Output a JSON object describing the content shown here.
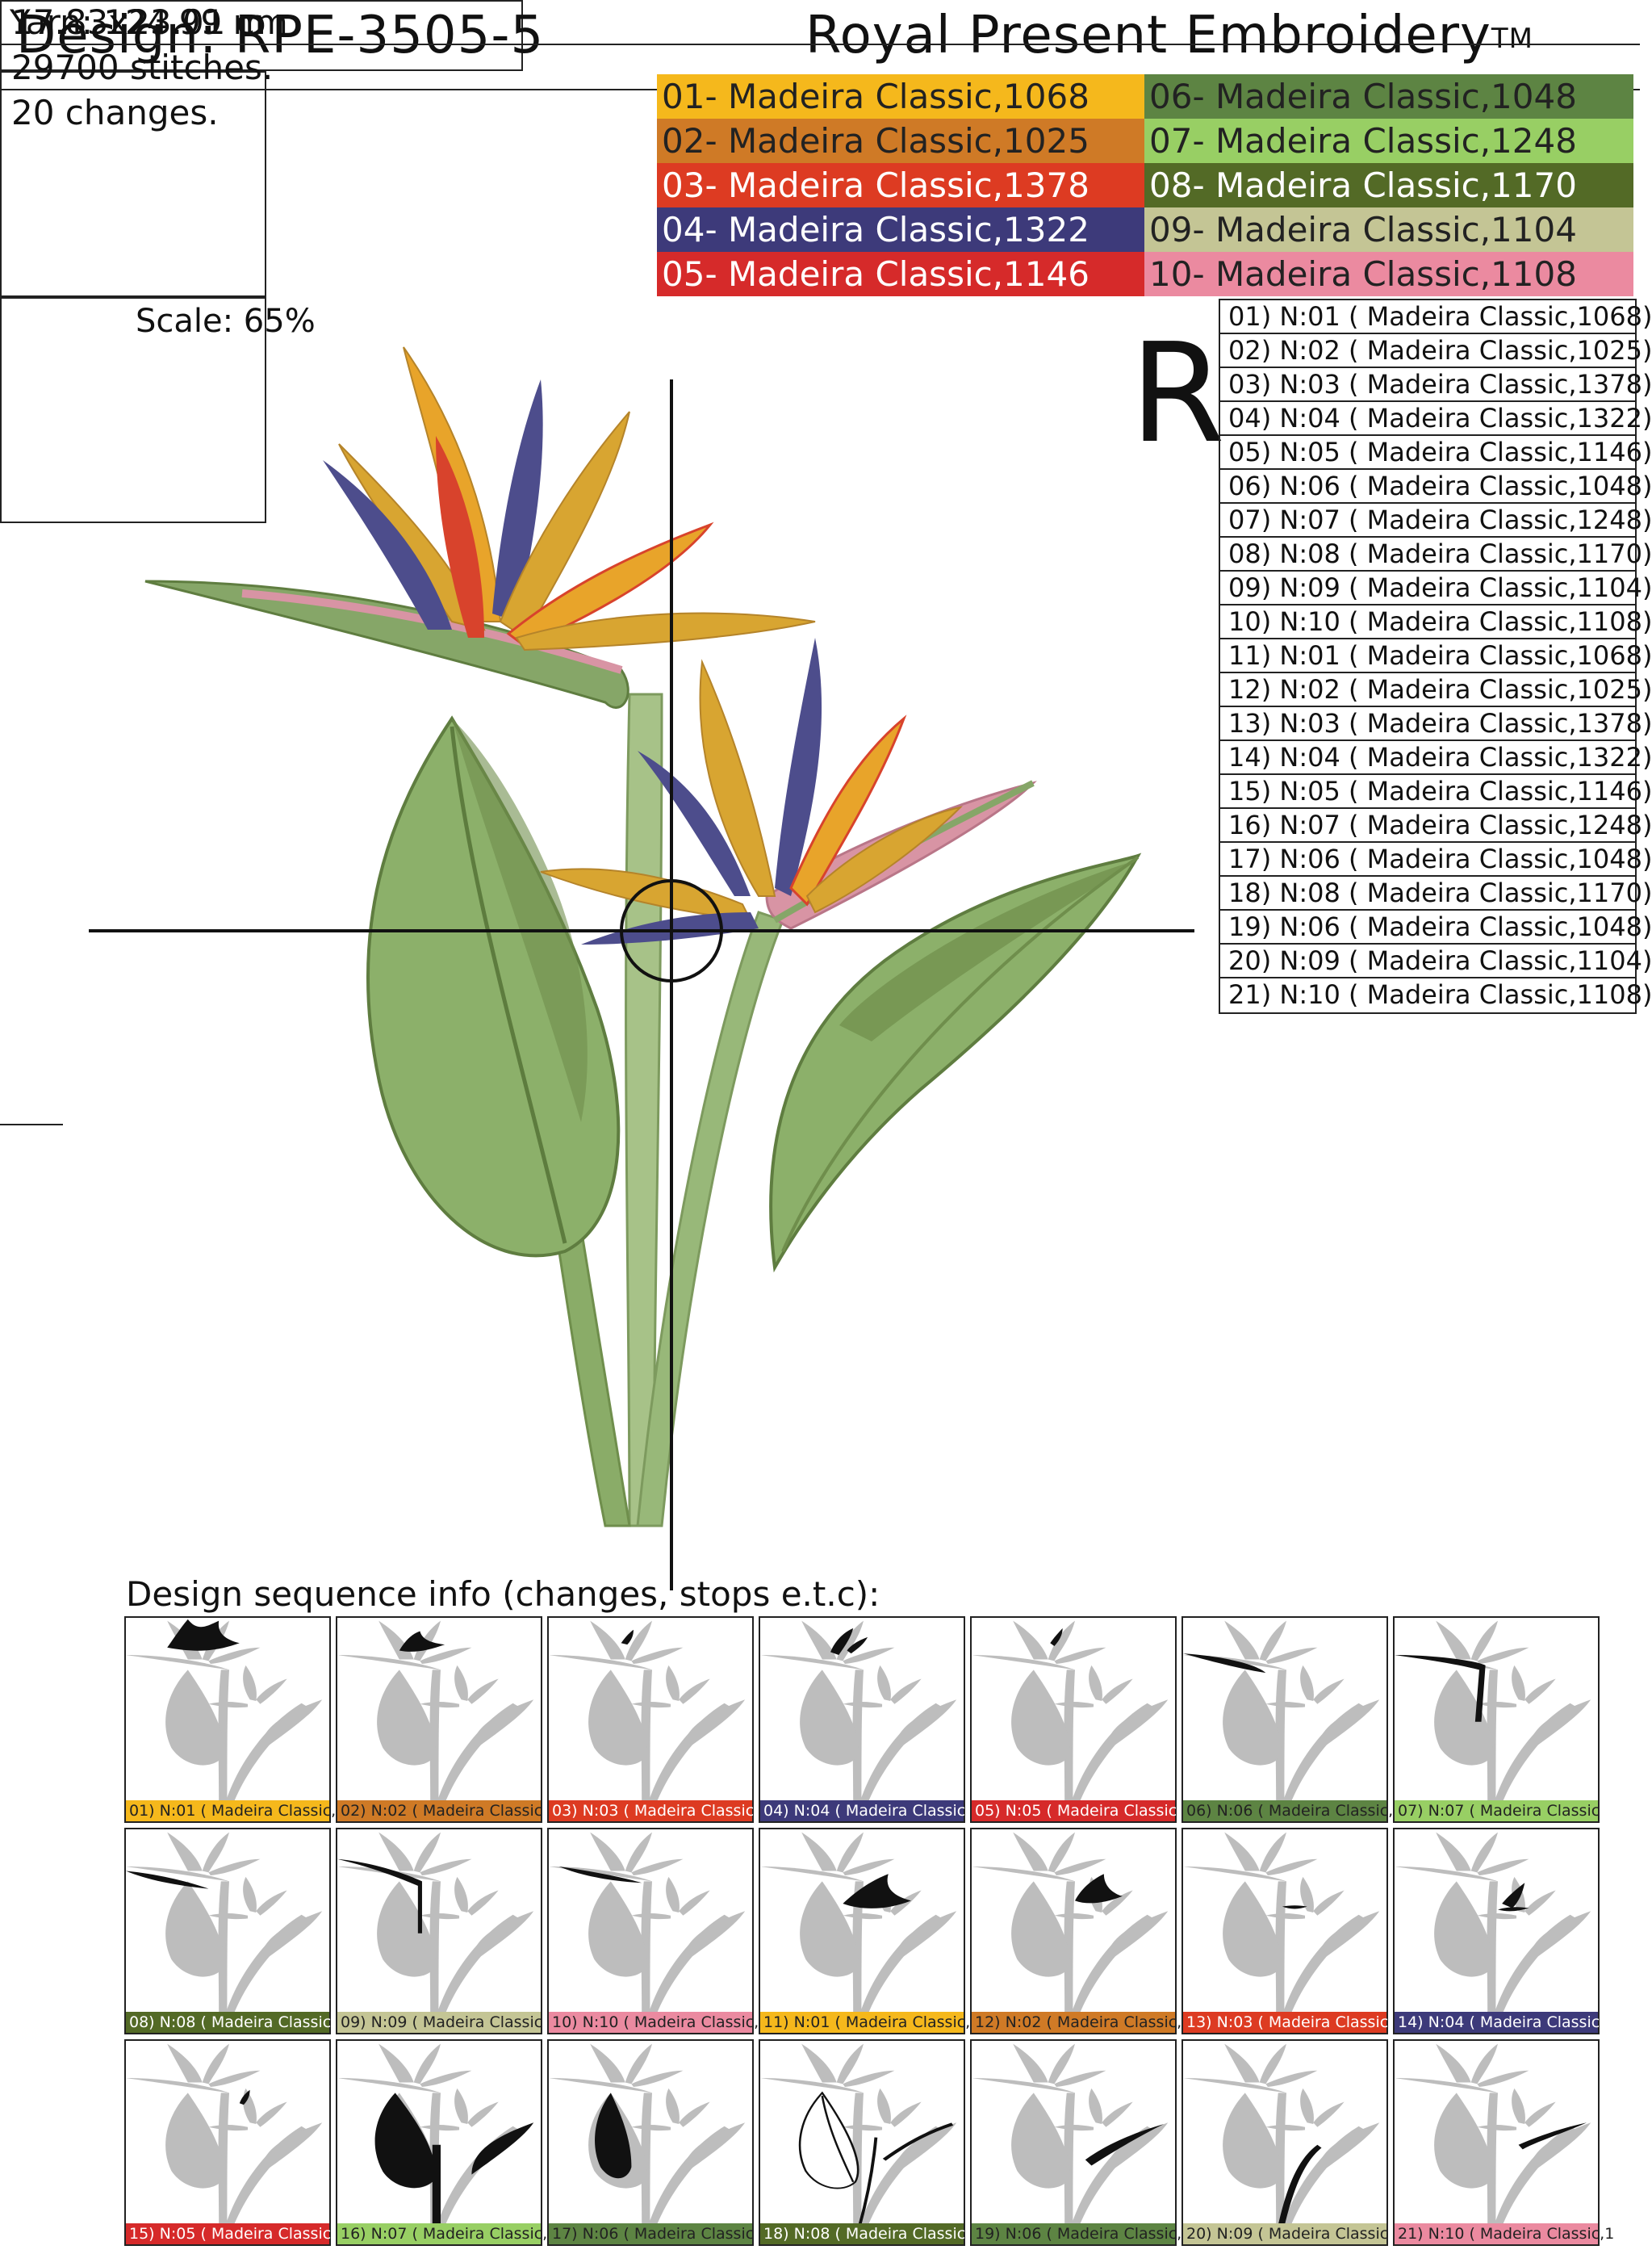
{
  "header": {
    "design_title": "Design: RPE-3505-5",
    "brand_title": "Royal Present Embroidery",
    "brand_mark": "TM"
  },
  "info": {
    "size": "17.83x23.01 cm",
    "stitches": "29700 stitches.",
    "changes": "20 changes.",
    "yarn": "Yarn: 124.99 m"
  },
  "palette": [
    {
      "label": "01- Madeira Classic,1068",
      "color": "#f5b81c",
      "text": "#222222"
    },
    {
      "label": "02- Madeira Classic,1025",
      "color": "#cf7a26",
      "text": "#222222"
    },
    {
      "label": "03- Madeira Classic,1378",
      "color": "#dd3b22",
      "text": "#ffffff"
    },
    {
      "label": "04- Madeira Classic,1322",
      "color": "#3d3a7a",
      "text": "#ffffff"
    },
    {
      "label": "05- Madeira Classic,1146",
      "color": "#d62a2a",
      "text": "#ffffff"
    },
    {
      "label": "06- Madeira Classic,1048",
      "color": "#5d8443",
      "text": "#222222"
    },
    {
      "label": "07- Madeira Classic,1248",
      "color": "#98cf64",
      "text": "#222222"
    },
    {
      "label": "08- Madeira Classic,1170",
      "color": "#536a26",
      "text": "#ffffff"
    },
    {
      "label": "09- Madeira Classic,1104",
      "color": "#c4c595",
      "text": "#222222"
    },
    {
      "label": "10- Madeira Classic,1108",
      "color": "#eb8aa0",
      "text": "#222222"
    }
  ],
  "scale_label": "Scale: 65%",
  "orientation_mark": "R",
  "thread_list": [
    "01) N:01 ( Madeira Classic,1068)",
    "02) N:02 ( Madeira Classic,1025)",
    "03) N:03 ( Madeira Classic,1378)",
    "04) N:04 ( Madeira Classic,1322)",
    "05) N:05 ( Madeira Classic,1146)",
    "06) N:06 ( Madeira Classic,1048)",
    "07) N:07 ( Madeira Classic,1248)",
    "08) N:08 ( Madeira Classic,1170)",
    "09) N:09 ( Madeira Classic,1104)",
    "10) N:10 ( Madeira Classic,1108)",
    "11) N:01 ( Madeira Classic,1068)",
    "12) N:02 ( Madeira Classic,1025)",
    "13) N:03 ( Madeira Classic,1378)",
    "14) N:04 ( Madeira Classic,1322)",
    "15) N:05 ( Madeira Classic,1146)",
    "16) N:07 ( Madeira Classic,1248)",
    "17) N:06 ( Madeira Classic,1048)",
    "18) N:08 ( Madeira Classic,1170)",
    "19) N:06 ( Madeira Classic,1048)",
    "20) N:09 ( Madeira Classic,1104)",
    "21) N:10 ( Madeira Classic,1108)"
  ],
  "sequence_label": "Design sequence info (changes, stops e.t.c):",
  "sequence": [
    {
      "label": "01) N:01 ( Madeira Classic,1",
      "color": "#f5b81c",
      "text": "#222222"
    },
    {
      "label": "02) N:02 ( Madeira Classic",
      "color": "#cf7a26",
      "text": "#222222"
    },
    {
      "label": "03) N:03 ( Madeira Classic",
      "color": "#dd3b22",
      "text": "#ffffff"
    },
    {
      "label": "04) N:04 ( Madeira Classic",
      "color": "#3d3a7a",
      "text": "#ffffff"
    },
    {
      "label": "05) N:05 ( Madeira Classic",
      "color": "#d62a2a",
      "text": "#ffffff"
    },
    {
      "label": "06) N:06 ( Madeira Classic,",
      "color": "#5d8443",
      "text": "#222222"
    },
    {
      "label": "07) N:07 ( Madeira Classic",
      "color": "#98cf64",
      "text": "#222222"
    },
    {
      "label": "08) N:08 ( Madeira Classic",
      "color": "#536a26",
      "text": "#ffffff"
    },
    {
      "label": "09) N:09 ( Madeira Classic",
      "color": "#c4c595",
      "text": "#222222"
    },
    {
      "label": "10) N:10 ( Madeira Classic,1",
      "color": "#eb8aa0",
      "text": "#222222"
    },
    {
      "label": "11) N:01 ( Madeira Classic,10",
      "color": "#f5b81c",
      "text": "#222222"
    },
    {
      "label": "12) N:02 ( Madeira Classic,",
      "color": "#cf7a26",
      "text": "#222222"
    },
    {
      "label": "13) N:03 ( Madeira Classic,",
      "color": "#dd3b22",
      "text": "#ffffff"
    },
    {
      "label": "14) N:04 ( Madeira Classic,",
      "color": "#3d3a7a",
      "text": "#ffffff"
    },
    {
      "label": "15) N:05 ( Madeira Classic,",
      "color": "#d62a2a",
      "text": "#ffffff"
    },
    {
      "label": "16) N:07 ( Madeira Classic,",
      "color": "#98cf64",
      "text": "#222222"
    },
    {
      "label": "17) N:06 ( Madeira Classic",
      "color": "#5d8443",
      "text": "#222222"
    },
    {
      "label": "18) N:08 ( Madeira Classic,",
      "color": "#536a26",
      "text": "#ffffff"
    },
    {
      "label": "19) N:06 ( Madeira Classic,",
      "color": "#5d8443",
      "text": "#222222"
    },
    {
      "label": "20) N:09 ( Madeira Classic",
      "color": "#c4c595",
      "text": "#222222"
    },
    {
      "label": "21) N:10 ( Madeira Classic,1",
      "color": "#eb8aa0",
      "text": "#222222"
    }
  ],
  "artwork_colors": {
    "leaf_dark": "#6f8e4c",
    "leaf_light": "#8cb06a",
    "stem": "#a7c288",
    "petal_orange": "#e8a42a",
    "petal_gold": "#d8a531",
    "petal_blue": "#4d4d8c",
    "petal_red": "#d8432c",
    "bract_pink": "#d894a4",
    "bract_green": "#86a668",
    "thumb_gray": "#bdbdbd",
    "thumb_active": "#111111"
  }
}
